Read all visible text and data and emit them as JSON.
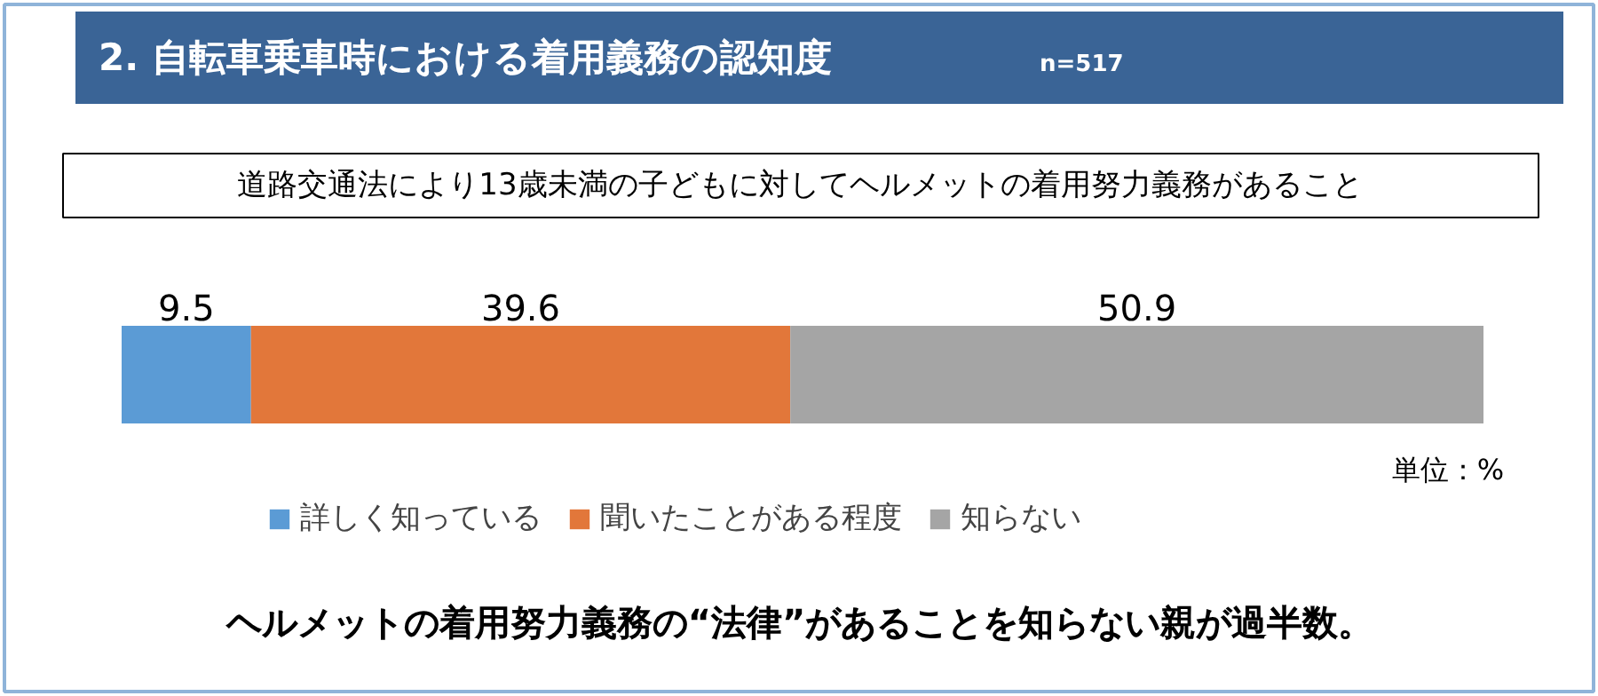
{
  "chart_data": {
    "type": "bar",
    "orientation": "horizontal",
    "stacked": true,
    "title": "2. 自転車乗車時における着用義務の認知度",
    "subtitle": "道路交通法により13歳未満の子どもに対してヘルメットの着用努力義務があること",
    "categories": [
      null
    ],
    "series": [
      {
        "name": "詳しく知っている",
        "color": "#5b9bd5",
        "values": [
          9.5
        ]
      },
      {
        "name": "聞いたことがある程度",
        "color": "#e2773a",
        "values": [
          39.6
        ]
      },
      {
        "name": "知らない",
        "color": "#a5a5a5",
        "values": [
          50.9
        ]
      }
    ],
    "data_labels": true,
    "legend": "bottom",
    "annotations": [
      "n=517",
      "単位：%",
      "ヘルメットの着用努力義務の“法律”があることを知らない親が過半数。"
    ]
  }
}
